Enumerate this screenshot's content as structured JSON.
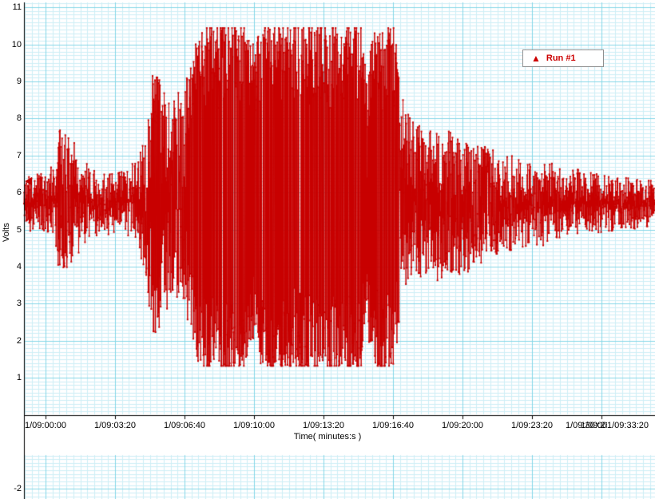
{
  "window": {
    "bg": "#ffffff"
  },
  "chart_data": {
    "type": "line",
    "title": "",
    "xlabel": "Time( minutes:s )",
    "ylabel": "Volts",
    "legend": {
      "label": "Run #1",
      "marker": "triangle-icon"
    },
    "trace_color": "#c80000",
    "grid_minor_color": "#cdeef6",
    "grid_major_color": "#86d7e8",
    "axis_color": "#000000",
    "x_tick_labels": [
      "1/09:00:00",
      "1/09:03:20",
      "1/09:06:40",
      "1/09:10:00",
      "1/09:13:20",
      "1/09:16:40",
      "1/09:20:00",
      "1/09:23:20",
      "1/09:26:40",
      "1/09:30:00",
      "1/09:33:20"
    ],
    "y_ticks": [
      {
        "value": 11,
        "label": "11"
      },
      {
        "value": 10,
        "label": "10"
      },
      {
        "value": 9,
        "label": "9"
      },
      {
        "value": 8,
        "label": "8"
      },
      {
        "value": 7,
        "label": "7"
      },
      {
        "value": 6,
        "label": "6"
      },
      {
        "value": 5,
        "label": "5"
      },
      {
        "value": 4,
        "label": "4"
      },
      {
        "value": 3,
        "label": "3"
      },
      {
        "value": 2,
        "label": "2"
      },
      {
        "value": 1,
        "label": "1"
      },
      {
        "value": -2,
        "label": "-2"
      }
    ],
    "ylim": [
      -2.4,
      11.1
    ],
    "baseline": 5.65,
    "clip_high": 10.44,
    "clip_low": 1.32,
    "cursor": {
      "value": 6.3,
      "color": "#c00000"
    },
    "samples": 2400,
    "seed": 7,
    "envelope": [
      [
        0.0,
        5.0,
        6.4
      ],
      [
        0.04,
        4.9,
        6.6
      ],
      [
        0.051,
        4.4,
        7.2
      ],
      [
        0.06,
        3.5,
        8.05
      ],
      [
        0.067,
        4.0,
        7.5
      ],
      [
        0.082,
        4.4,
        7.35
      ],
      [
        0.101,
        4.7,
        6.9
      ],
      [
        0.127,
        4.9,
        6.6
      ],
      [
        0.18,
        4.8,
        6.8
      ],
      [
        0.194,
        3.4,
        8.1
      ],
      [
        0.205,
        2.0,
        9.25
      ],
      [
        0.222,
        2.9,
        8.8
      ],
      [
        0.243,
        3.2,
        8.6
      ],
      [
        0.266,
        2.4,
        9.3
      ],
      [
        0.281,
        1.3,
        10.4
      ],
      [
        0.352,
        1.3,
        10.4
      ],
      [
        0.365,
        2.3,
        9.7
      ],
      [
        0.38,
        1.3,
        10.4
      ],
      [
        0.534,
        1.3,
        10.4
      ],
      [
        0.544,
        2.6,
        8.8
      ],
      [
        0.554,
        1.3,
        10.35
      ],
      [
        0.585,
        1.3,
        10.35
      ],
      [
        0.598,
        3.2,
        8.6
      ],
      [
        0.614,
        3.7,
        7.9
      ],
      [
        0.646,
        3.8,
        7.6
      ],
      [
        0.684,
        3.6,
        7.5
      ],
      [
        0.722,
        4.1,
        7.2
      ],
      [
        0.772,
        4.4,
        7.0
      ],
      [
        0.823,
        4.6,
        6.8
      ],
      [
        0.873,
        4.9,
        6.6
      ],
      [
        0.937,
        5.0,
        6.4
      ],
      [
        1.0,
        5.1,
        6.3
      ]
    ]
  }
}
